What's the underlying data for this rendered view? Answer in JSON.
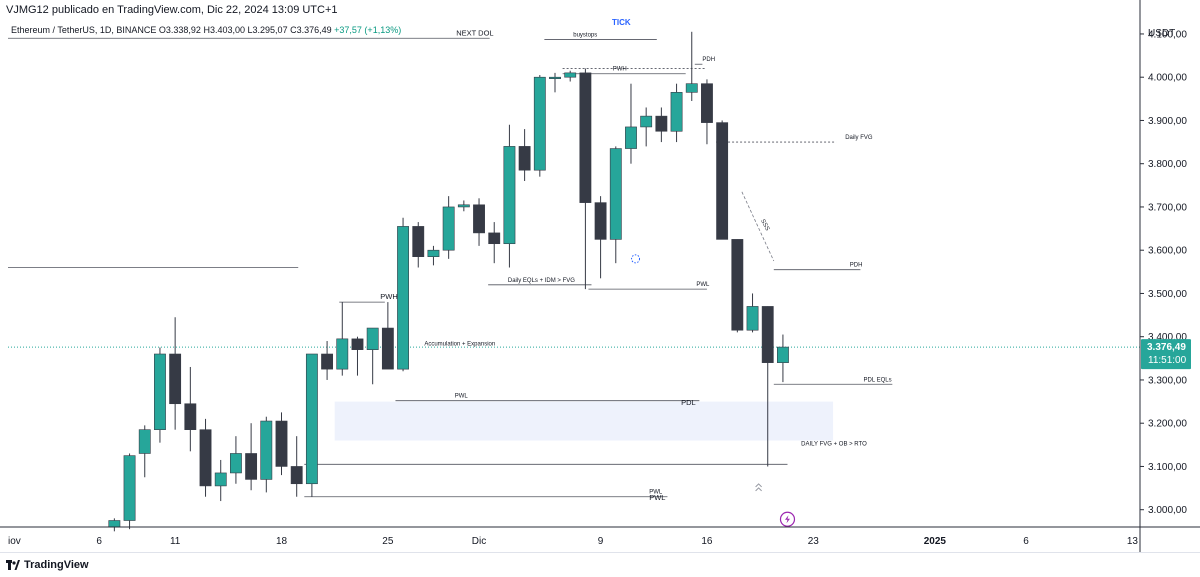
{
  "header": {
    "caption": "VJMG12 publicado en TradingView.com, Dic 22, 2024 13:09 UTC+1",
    "tick_label": "TICK",
    "symbol": "Ethereum / TetherUS, 1D, BINANCE",
    "open": "O3.338,92",
    "high": "H3.403,00",
    "low": "L3.295,07",
    "close": "C3.376,49",
    "change": "+37,57 (+1,13%)"
  },
  "currency": "USDT",
  "price_axis": {
    "ticks": [
      {
        "v": 4100,
        "label": "4.100,00"
      },
      {
        "v": 4000,
        "label": "4.000,00"
      },
      {
        "v": 3900,
        "label": "3.900,00"
      },
      {
        "v": 3800,
        "label": "3.800,00"
      },
      {
        "v": 3700,
        "label": "3.700,00"
      },
      {
        "v": 3600,
        "label": "3.600,00"
      },
      {
        "v": 3500,
        "label": "3.500,00"
      },
      {
        "v": 3400,
        "label": "3.400,00"
      },
      {
        "v": 3300,
        "label": "3.300,00"
      },
      {
        "v": 3200,
        "label": "3.200,00"
      },
      {
        "v": 3100,
        "label": "3.100,00"
      },
      {
        "v": 3000,
        "label": "3.000,00"
      }
    ],
    "current_price": "3.376,49",
    "countdown": "11:51:00"
  },
  "time_axis": {
    "ticks": [
      {
        "d": 0,
        "label": "iov"
      },
      {
        "d": 6,
        "label": "6"
      },
      {
        "d": 11,
        "label": "11"
      },
      {
        "d": 18,
        "label": "18"
      },
      {
        "d": 25,
        "label": "25"
      },
      {
        "d": 31,
        "label": "Dic"
      },
      {
        "d": 39,
        "label": "9"
      },
      {
        "d": 46,
        "label": "16"
      },
      {
        "d": 53,
        "label": "23"
      },
      {
        "d": 61,
        "label": "2025"
      },
      {
        "d": 67,
        "label": "6"
      },
      {
        "d": 74,
        "label": "13"
      }
    ]
  },
  "chart_data": {
    "type": "candlestick",
    "x_unit": "days since 5 Nov 2024",
    "y_unit": "USDT",
    "ylim": [
      2960,
      4160
    ],
    "xlim": [
      0,
      74.5
    ],
    "colors": {
      "up": "#26a69a",
      "down": "#363a45",
      "line": "#363a45"
    },
    "candles": [
      [
        7,
        2960,
        2980,
        2950,
        2975
      ],
      [
        8,
        2975,
        3130,
        2955,
        3125
      ],
      [
        9,
        3130,
        3195,
        3075,
        3185
      ],
      [
        10,
        3185,
        3375,
        3155,
        3360
      ],
      [
        11,
        3360,
        3445,
        3185,
        3245
      ],
      [
        12,
        3245,
        3330,
        3135,
        3185
      ],
      [
        13,
        3185,
        3210,
        3030,
        3055
      ],
      [
        14,
        3055,
        3115,
        3020,
        3085
      ],
      [
        15,
        3085,
        3170,
        3060,
        3130
      ],
      [
        16,
        3130,
        3200,
        3045,
        3070
      ],
      [
        17,
        3070,
        3215,
        3040,
        3205
      ],
      [
        18,
        3205,
        3225,
        3080,
        3100
      ],
      [
        19,
        3100,
        3170,
        3030,
        3060
      ],
      [
        20,
        3060,
        3360,
        3030,
        3360
      ],
      [
        21,
        3360,
        3390,
        3300,
        3325
      ],
      [
        22,
        3325,
        3480,
        3310,
        3395
      ],
      [
        23,
        3395,
        3400,
        3310,
        3370
      ],
      [
        24,
        3370,
        3420,
        3290,
        3420
      ],
      [
        25,
        3420,
        3480,
        3330,
        3325
      ],
      [
        26,
        3325,
        3675,
        3320,
        3655
      ],
      [
        27,
        3655,
        3665,
        3560,
        3585
      ],
      [
        28,
        3585,
        3610,
        3565,
        3600
      ],
      [
        29,
        3600,
        3725,
        3580,
        3700
      ],
      [
        30,
        3700,
        3715,
        3690,
        3705
      ],
      [
        31,
        3705,
        3720,
        3610,
        3640
      ],
      [
        32,
        3640,
        3665,
        3570,
        3615
      ],
      [
        33,
        3615,
        3890,
        3560,
        3840
      ],
      [
        34,
        3840,
        3880,
        3760,
        3785
      ],
      [
        35,
        3785,
        4005,
        3770,
        4000
      ],
      [
        36,
        4000,
        4010,
        3965,
        4000
      ],
      [
        37,
        4000,
        4015,
        3990,
        4010
      ],
      [
        38,
        4010,
        4020,
        3510,
        3710
      ],
      [
        39,
        3710,
        3725,
        3535,
        3625
      ],
      [
        40,
        3625,
        3840,
        3570,
        3835
      ],
      [
        41,
        3835,
        3985,
        3800,
        3885
      ],
      [
        42,
        3885,
        3930,
        3840,
        3910
      ],
      [
        43,
        3910,
        3930,
        3850,
        3875
      ],
      [
        44,
        3875,
        3985,
        3850,
        3965
      ],
      [
        45,
        3965,
        4105,
        3945,
        3985
      ],
      [
        46,
        3985,
        3995,
        3845,
        3895
      ],
      [
        47,
        3895,
        3900,
        3630,
        3625
      ],
      [
        48,
        3625,
        3625,
        3410,
        3415
      ],
      [
        49,
        3415,
        3500,
        3410,
        3470
      ],
      [
        50,
        3470,
        3470,
        3100,
        3340
      ],
      [
        51,
        3340,
        3405,
        3295,
        3376
      ]
    ],
    "lines": [
      {
        "x1": 0,
        "x2": 31.7,
        "y": 4090,
        "label": "NEXT DOL",
        "label_x": 29.5
      },
      {
        "x1": 0,
        "x2": 19.1,
        "y": 3560
      },
      {
        "x1": 35.3,
        "x2": 42.7,
        "y": 4087,
        "label": "buystops",
        "label_x": 37.2
      },
      {
        "x1": 36.5,
        "x2": 44.6,
        "y": 4008,
        "label": "PWH",
        "label_x": 39.8
      },
      {
        "x1": 36.5,
        "x2": 45.9,
        "y": 4020,
        "dashed": true
      },
      {
        "x1": 45.2,
        "x2": 45.7,
        "y": 4030,
        "label": "PDH",
        "label_x": 45.7
      },
      {
        "x1": 46.6,
        "x2": 54.5,
        "y": 3850,
        "dashed": true,
        "label": "Daily FVG",
        "label_x": 55.1
      },
      {
        "x1": 21.8,
        "x2": 24.8,
        "y": 3480,
        "label": "PWH",
        "label_x": 24.5
      },
      {
        "x1": 25.5,
        "x2": 45.5,
        "y": 3252,
        "label": "PWL",
        "label_x": 29.4
      },
      {
        "x1": 31.6,
        "x2": 38.4,
        "y": 3520,
        "label": "Daily EQLs + IDM > FVG",
        "label_x": 32.9
      },
      {
        "x1": 38.2,
        "x2": 46.0,
        "y": 3510,
        "label": "PWL",
        "label_x": 45.3
      },
      {
        "x1": 50.4,
        "x2": 56.1,
        "y": 3555,
        "label": "PDH",
        "label_x": 55.4
      },
      {
        "x1": 50.4,
        "x2": 58.2,
        "y": 3290,
        "label": "PDL EQLs",
        "label_x": 56.3
      },
      {
        "x1": 19.5,
        "x2": 51.3,
        "y": 3105
      },
      {
        "x1": 19.5,
        "x2": 43.4,
        "y": 3030,
        "label": "PWL",
        "label_x": 42.2
      }
    ],
    "zones": [
      {
        "x1": 21.5,
        "x2": 54.3,
        "y1": 3250,
        "y2": 3160,
        "color": "#eef2fc"
      }
    ],
    "annotations": [
      {
        "label": "Accumulation + Expansion",
        "x": 27.4,
        "y": 3380
      },
      {
        "label": "PDL",
        "x": 44.3,
        "y": 3242,
        "big": true
      },
      {
        "label": "DAILY FVG + OB > RTO",
        "x": 52.2,
        "y": 3148
      },
      {
        "label": "PWL",
        "x": 42.2,
        "y": 3022,
        "big": true
      }
    ],
    "sss": {
      "x1": 48.3,
      "x2": 50.4,
      "y1": 3735,
      "y2": 3575,
      "label": "SSS"
    },
    "current_line": {
      "y": 3376
    },
    "last_close_label": "3.376,49",
    "extras": {
      "spinner": {
        "x": 41.3,
        "y": 3580
      },
      "chevrons": {
        "x": 49.4,
        "y": 3055
      },
      "bolt": {
        "x": 51.3,
        "y": 2978
      }
    }
  },
  "footer": {
    "brand": "TradingView"
  }
}
